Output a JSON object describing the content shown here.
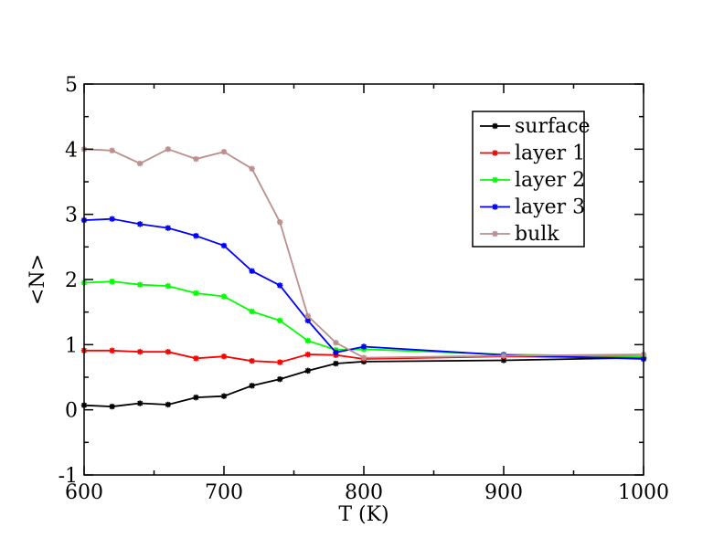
{
  "chart_data": {
    "type": "line",
    "xlabel": "T (K)",
    "ylabel": "<N>",
    "xlim": [
      600,
      1000
    ],
    "ylim": [
      -1,
      5
    ],
    "xticks": [
      600,
      700,
      800,
      900,
      1000
    ],
    "yticks": [
      -1,
      0,
      1,
      2,
      3,
      4,
      5
    ],
    "grid": false,
    "legend_position": "top-right",
    "series": [
      {
        "name": "surface",
        "color": "#000000",
        "x": [
          600,
          620,
          640,
          660,
          680,
          700,
          720,
          740,
          760,
          780,
          800,
          900,
          1000
        ],
        "y": [
          0.07,
          0.05,
          0.1,
          0.08,
          0.19,
          0.21,
          0.37,
          0.47,
          0.6,
          0.71,
          0.74,
          0.76,
          0.8
        ]
      },
      {
        "name": "layer 1",
        "color": "#ff0000",
        "x": [
          600,
          620,
          640,
          660,
          680,
          700,
          720,
          740,
          760,
          780,
          800,
          900,
          1000
        ],
        "y": [
          0.91,
          0.91,
          0.89,
          0.89,
          0.79,
          0.82,
          0.75,
          0.73,
          0.85,
          0.84,
          0.78,
          0.82,
          0.8
        ]
      },
      {
        "name": "layer 2",
        "color": "#00ff00",
        "x": [
          600,
          620,
          640,
          660,
          680,
          700,
          720,
          740,
          760,
          780,
          800,
          900,
          1000
        ],
        "y": [
          1.95,
          1.97,
          1.92,
          1.9,
          1.79,
          1.74,
          1.51,
          1.37,
          1.06,
          0.92,
          0.93,
          0.85,
          0.82
        ]
      },
      {
        "name": "layer 3",
        "color": "#0000ff",
        "x": [
          600,
          620,
          640,
          660,
          680,
          700,
          720,
          740,
          760,
          780,
          800,
          900,
          1000
        ],
        "y": [
          2.91,
          2.93,
          2.85,
          2.79,
          2.67,
          2.52,
          2.13,
          1.91,
          1.37,
          0.88,
          0.97,
          0.84,
          0.78
        ]
      },
      {
        "name": "bulk",
        "color": "#bc8f8f",
        "x": [
          600,
          620,
          640,
          660,
          680,
          700,
          720,
          740,
          760,
          780,
          800,
          900,
          1000
        ],
        "y": [
          4.0,
          3.98,
          3.78,
          4.0,
          3.85,
          3.96,
          3.7,
          2.88,
          1.44,
          1.03,
          0.8,
          0.83,
          0.85
        ]
      }
    ]
  }
}
